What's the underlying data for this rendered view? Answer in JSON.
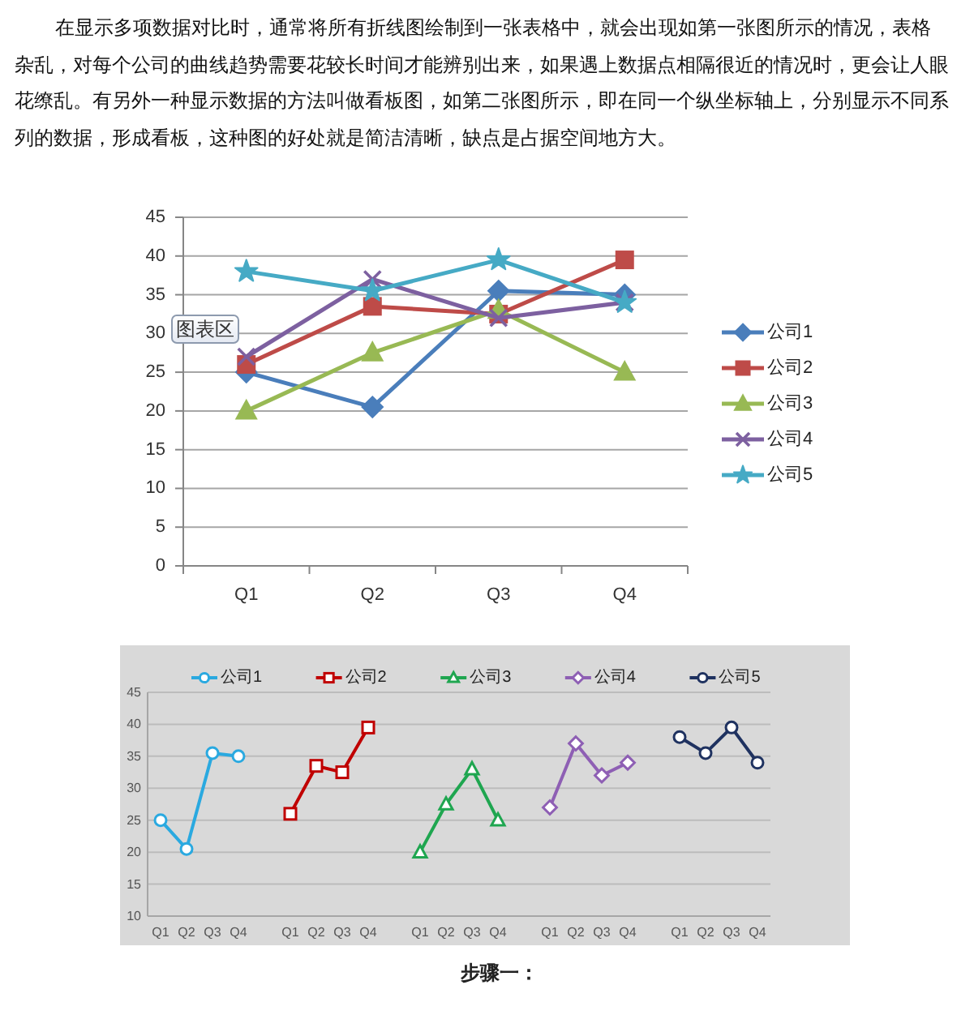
{
  "chart_data": [
    {
      "type": "line",
      "annotations": [
        "在显示多项数据对比时，通常将所有折线图绘制到一张表格中，就会出现如第一张图所示的情况，表格杂乱，对每个公司的曲线趋势需要花较长时间才能辨别出来，如果遇上数据点相隔很近的情况时，更会让人眼花缭乱。有另外一种显示数据的方法叫做看板图，如第二张图所示，即在同一个纵坐标轴上，分别显示不同系列的数据，形成看板，这种图的好处就是简洁清晰，缺点是占据空间地方大。",
        "图表区"
      ],
      "categories": [
        "Q1",
        "Q2",
        "Q3",
        "Q4"
      ],
      "series": [
        {
          "name": "公司1",
          "color": "#4a7ebb",
          "marker": "diamond",
          "values": [
            25,
            20.5,
            35.5,
            35
          ]
        },
        {
          "name": "公司2",
          "color": "#be4b48",
          "marker": "square",
          "values": [
            26,
            33.5,
            32.5,
            39.5
          ]
        },
        {
          "name": "公司3",
          "color": "#98b954",
          "marker": "triangle",
          "values": [
            20,
            27.5,
            33,
            25
          ]
        },
        {
          "name": "公司4",
          "color": "#7d60a0",
          "marker": "cross",
          "values": [
            27,
            37,
            32,
            34
          ]
        },
        {
          "name": "公司5",
          "color": "#46aac5",
          "marker": "star",
          "values": [
            38,
            35.5,
            39.5,
            34
          ]
        }
      ],
      "ylim": [
        0,
        45
      ],
      "yticks": [
        0,
        5,
        10,
        15,
        20,
        25,
        30,
        35,
        40,
        45
      ],
      "grid": "y",
      "legend": "right"
    },
    {
      "type": "line",
      "annotations": [
        "步骤一："
      ],
      "categories": [
        "Q1",
        "Q2",
        "Q3",
        "Q4",
        null,
        "Q1",
        "Q2",
        "Q3",
        "Q4",
        null,
        "Q1",
        "Q2",
        "Q3",
        "Q4",
        null,
        "Q1",
        "Q2",
        "Q3",
        "Q4",
        null,
        "Q1",
        "Q2",
        "Q3",
        "Q4"
      ],
      "series": [
        {
          "name": "公司1",
          "color": "#2aa9e0",
          "marker": "circle",
          "values": [
            25,
            20.5,
            35.5,
            35,
            null,
            null,
            null,
            null,
            null,
            null,
            null,
            null,
            null,
            null,
            null,
            null,
            null,
            null,
            null,
            null,
            null,
            null,
            null,
            null
          ]
        },
        {
          "name": "公司2",
          "color": "#c00000",
          "marker": "square",
          "values": [
            null,
            null,
            null,
            null,
            null,
            26,
            33.5,
            32.5,
            39.5,
            null,
            null,
            null,
            null,
            null,
            null,
            null,
            null,
            null,
            null,
            null,
            null,
            null,
            null,
            null
          ]
        },
        {
          "name": "公司3",
          "color": "#1fa650",
          "marker": "triangle",
          "values": [
            null,
            null,
            null,
            null,
            null,
            null,
            null,
            null,
            null,
            null,
            20,
            27.5,
            33,
            25,
            null,
            null,
            null,
            null,
            null,
            null,
            null,
            null,
            null,
            null
          ]
        },
        {
          "name": "公司4",
          "color": "#8e5fb4",
          "marker": "diamond",
          "values": [
            null,
            null,
            null,
            null,
            null,
            null,
            null,
            null,
            null,
            null,
            null,
            null,
            null,
            null,
            null,
            27,
            37,
            32,
            34,
            null,
            null,
            null,
            null,
            null
          ]
        },
        {
          "name": "公司5",
          "color": "#1f3260",
          "marker": "circle",
          "values": [
            null,
            null,
            null,
            null,
            null,
            null,
            null,
            null,
            null,
            null,
            null,
            null,
            null,
            null,
            null,
            null,
            null,
            null,
            null,
            null,
            38,
            35.5,
            39.5,
            34
          ]
        }
      ],
      "ylim": [
        10,
        45
      ],
      "yticks": [
        10,
        15,
        20,
        25,
        30,
        35,
        40,
        45
      ],
      "grid": "y",
      "legend": "top"
    }
  ]
}
